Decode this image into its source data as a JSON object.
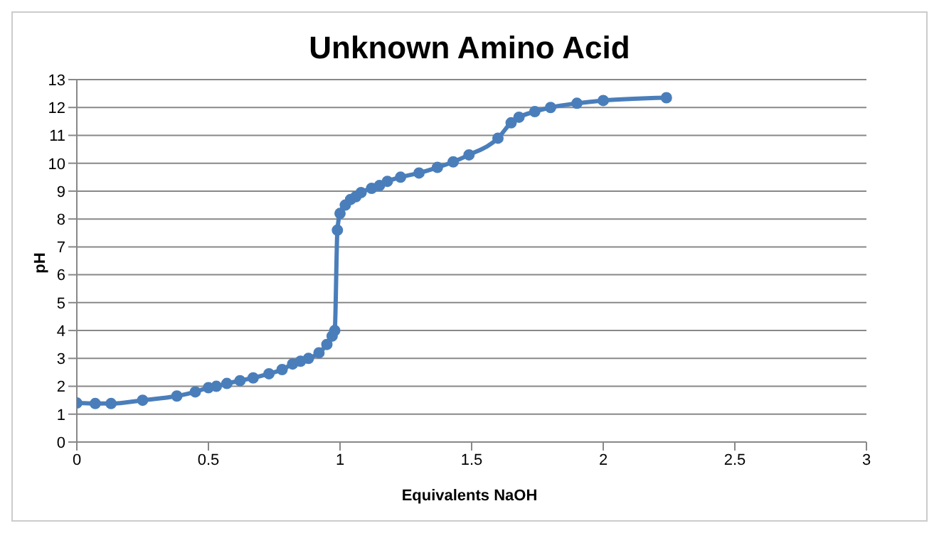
{
  "chart_data": {
    "type": "line",
    "title": "Unknown Amino Acid",
    "xlabel": "Equivalents  NaOH",
    "ylabel": "pH",
    "x": [
      0,
      0.07,
      0.13,
      0.25,
      0.38,
      0.45,
      0.5,
      0.53,
      0.57,
      0.62,
      0.67,
      0.73,
      0.78,
      0.82,
      0.85,
      0.88,
      0.92,
      0.95,
      0.97,
      0.98,
      0.99,
      1.0,
      1.02,
      1.04,
      1.06,
      1.08,
      1.12,
      1.15,
      1.18,
      1.23,
      1.3,
      1.37,
      1.43,
      1.49,
      1.6,
      1.65,
      1.68,
      1.74,
      1.8,
      1.9,
      2.0,
      2.24
    ],
    "series": [
      {
        "color": "#4a7ebb",
        "values": [
          1.4,
          1.38,
          1.38,
          1.5,
          1.65,
          1.8,
          1.95,
          2.0,
          2.1,
          2.2,
          2.3,
          2.45,
          2.6,
          2.8,
          2.9,
          3.0,
          3.2,
          3.5,
          3.8,
          4.0,
          7.6,
          8.2,
          8.5,
          8.7,
          8.8,
          8.95,
          9.1,
          9.2,
          9.35,
          9.5,
          9.65,
          9.85,
          10.05,
          10.3,
          10.9,
          11.45,
          11.65,
          11.85,
          12.0,
          12.15,
          12.25,
          12.35
        ]
      }
    ],
    "xlim": [
      0,
      3
    ],
    "xticks": [
      0,
      0.5,
      1,
      1.5,
      2,
      2.5,
      3
    ],
    "ylim": [
      0,
      13
    ],
    "yticks": [
      0,
      1,
      2,
      3,
      4,
      5,
      6,
      7,
      8,
      9,
      10,
      11,
      12,
      13
    ],
    "grid": "y",
    "marker": "circle",
    "line_style": "solid"
  }
}
